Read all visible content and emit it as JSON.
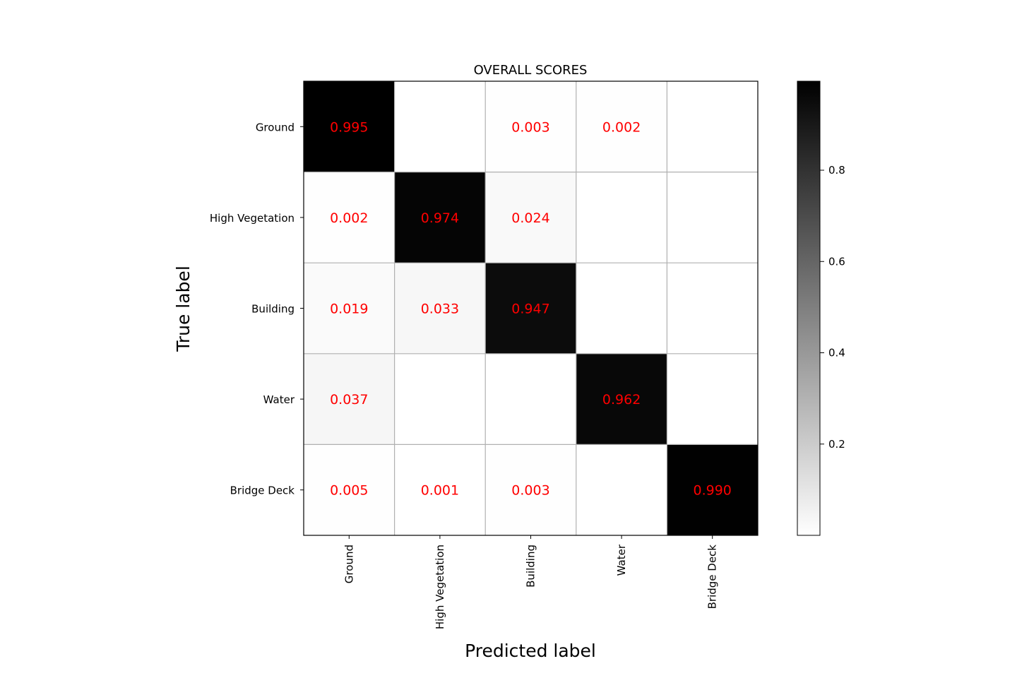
{
  "chart_data": {
    "type": "heatmap",
    "title": "OVERALL SCORES",
    "xlabel": "Predicted label",
    "ylabel": "True label",
    "rows": [
      "Ground",
      "High Vegetation",
      "Building",
      "Water",
      "Bridge Deck"
    ],
    "cols": [
      "Ground",
      "High Vegetation",
      "Building",
      "Water",
      "Bridge Deck"
    ],
    "values": [
      [
        0.995,
        0.0,
        0.003,
        0.002,
        0.0
      ],
      [
        0.002,
        0.974,
        0.024,
        0.0,
        0.0
      ],
      [
        0.019,
        0.033,
        0.947,
        0.0,
        0.0
      ],
      [
        0.037,
        0.0,
        0.0,
        0.962,
        0.0
      ],
      [
        0.005,
        0.001,
        0.003,
        0.0,
        0.99
      ]
    ],
    "cell_labels": [
      [
        "0.995",
        "",
        "0.003",
        "0.002",
        ""
      ],
      [
        "0.002",
        "0.974",
        "0.024",
        "",
        ""
      ],
      [
        "0.019",
        "0.033",
        "0.947",
        "",
        ""
      ],
      [
        "0.037",
        "",
        "",
        "0.962",
        ""
      ],
      [
        "0.005",
        "0.001",
        "0.003",
        "",
        "0.990"
      ]
    ],
    "colormap": "Greys",
    "label_color": "#ff0000",
    "grid": true,
    "grid_color": "#b0b0b0",
    "colorbar": {
      "range": [
        0,
        0.995
      ],
      "ticks": [
        0.2,
        0.4,
        0.6,
        0.8
      ],
      "tick_labels": [
        "0.2",
        "0.4",
        "0.6",
        "0.8"
      ]
    }
  }
}
